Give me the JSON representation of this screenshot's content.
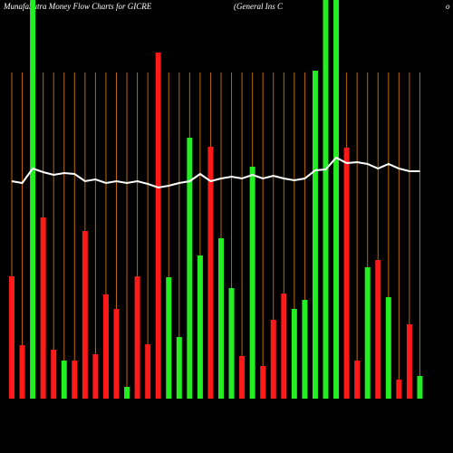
{
  "chart_data": {
    "type": "bar",
    "title": "MunafaSutra  Money Flow  Charts for GICRE",
    "subtitle": "(General Ins C",
    "title_tail": "o",
    "ylim": [
      0,
      440
    ],
    "grid_color": "#b86a00",
    "series": [
      {
        "type": "bar",
        "values": [
          135,
          59,
          440,
          200,
          54,
          42,
          42,
          185,
          49,
          115,
          99,
          13,
          135,
          60,
          382,
          134,
          68,
          288,
          158,
          278,
          177,
          122,
          47,
          256,
          36,
          87,
          116,
          99,
          109,
          362,
          440,
          440,
          277,
          42,
          145,
          153,
          112,
          21,
          82,
          25
        ],
        "colors": [
          "#ff1a1a",
          "#ff1a1a",
          "#22ee22",
          "#ff1a1a",
          "#ff1a1a",
          "#22ee22",
          "#ff1a1a",
          "#ff1a1a",
          "#ff1a1a",
          "#ff1a1a",
          "#ff1a1a",
          "#22ee22",
          "#ff1a1a",
          "#ff1a1a",
          "#ff1a1a",
          "#22ee22",
          "#22ee22",
          "#22ee22",
          "#22ee22",
          "#ff1a1a",
          "#22ee22",
          "#22ee22",
          "#ff1a1a",
          "#22ee22",
          "#ff1a1a",
          "#ff1a1a",
          "#ff1a1a",
          "#22ee22",
          "#22ee22",
          "#22ee22",
          "#22ee22",
          "#22ee22",
          "#ff1a1a",
          "#ff1a1a",
          "#22ee22",
          "#ff1a1a",
          "#22ee22",
          "#ff1a1a",
          "#ff1a1a",
          "#22ee22"
        ]
      },
      {
        "type": "line",
        "color": "#ffffff",
        "values": [
          240,
          238,
          254,
          250,
          247,
          249,
          248,
          240,
          242,
          238,
          240,
          238,
          240,
          237,
          233,
          235,
          238,
          240,
          248,
          240,
          243,
          245,
          243,
          247,
          243,
          246,
          243,
          241,
          243,
          252,
          253,
          266,
          260,
          261,
          259,
          254,
          259,
          254,
          251,
          251
        ]
      }
    ]
  }
}
